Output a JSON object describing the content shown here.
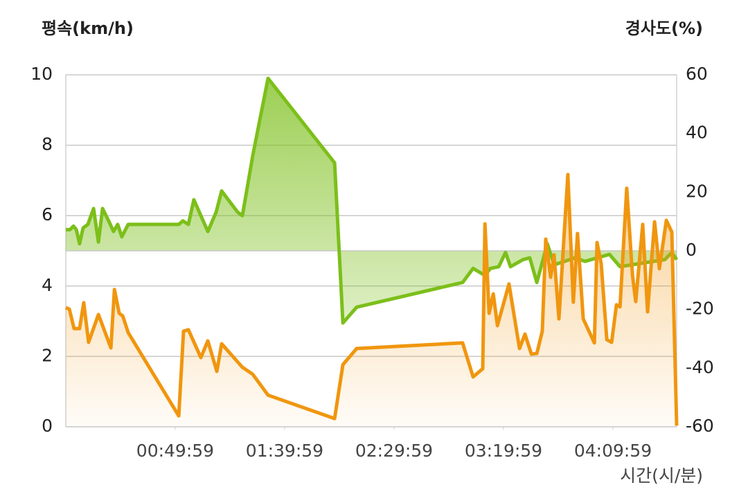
{
  "chart_data": {
    "type": "line",
    "ylabel": "평속(km/h)",
    "y2label": "경사도(%)",
    "xlabel": "시간(시/분)",
    "xlim": [
      0,
      279.1
    ],
    "xticks": [
      {
        "value": 49.98,
        "label": "00:49:59"
      },
      {
        "value": 99.98,
        "label": "01:39:59"
      },
      {
        "value": 149.98,
        "label": "02:29:59"
      },
      {
        "value": 199.98,
        "label": "03:19:59"
      },
      {
        "value": 249.98,
        "label": "04:09:59"
      }
    ],
    "ylim": [
      0,
      10
    ],
    "yticks": [
      0,
      2,
      4,
      6,
      8,
      10
    ],
    "y2lim": [
      -60,
      60
    ],
    "y2ticks": [
      -60,
      -40,
      -20,
      0,
      20,
      40,
      60
    ],
    "grid": true,
    "series": [
      {
        "name": "평속",
        "color": "#7cbf1a",
        "axis": "y",
        "x": [
          0,
          1.9,
          3.5,
          4.8,
          6.3,
          7.9,
          10.1,
          12.7,
          14.9,
          16.8,
          19.6,
          21.8,
          23.7,
          25.6,
          28.5,
          51.6,
          53.5,
          56,
          58.5,
          64.9,
          68.7,
          71.2,
          78.5,
          80.7,
          85.4,
          92.4,
          122.8,
          126.6,
          132.9,
          181.3,
          186.1,
          191.5,
          194,
          197.8,
          200.9,
          203.2,
          208.9,
          212,
          215.2,
          220,
          223.1,
          232.6,
          237.3,
          248.4,
          253.2,
          273.7,
          276.9,
          279.1
        ],
        "values": [
          5.6,
          5.6,
          5.7,
          5.6,
          5.2,
          5.65,
          5.75,
          6.2,
          5.25,
          6.2,
          5.85,
          5.55,
          5.75,
          5.4,
          5.75,
          5.75,
          5.85,
          5.75,
          6.45,
          5.55,
          6.1,
          6.7,
          6.1,
          6.0,
          7.7,
          9.9,
          7.5,
          2.95,
          3.4,
          4.1,
          4.5,
          4.3,
          4.5,
          4.55,
          4.95,
          4.55,
          4.75,
          4.8,
          4.1,
          5.2,
          4.6,
          4.8,
          4.7,
          4.9,
          4.55,
          4.75,
          4.95,
          4.75
        ]
      },
      {
        "name": "경사도",
        "color": "#f0960f",
        "axis": "y2",
        "x": [
          0,
          1.6,
          3.8,
          6.3,
          8.2,
          10.4,
          14.9,
          20.6,
          22.2,
          24.4,
          26,
          28.5,
          51.6,
          53.8,
          56,
          61.7,
          64.9,
          69,
          71.2,
          80.7,
          85.4,
          92.4,
          122.8,
          126.6,
          132.9,
          181.3,
          186.1,
          190.5,
          191.5,
          193.4,
          195.3,
          197.2,
          202.5,
          207.3,
          209.8,
          212.7,
          215.2,
          217.7,
          219.3,
          221.5,
          223.1,
          225.3,
          229.4,
          231.9,
          233.8,
          236.4,
          241.5,
          242.7,
          244.6,
          247.2,
          249.4,
          251.6,
          253.2,
          256.3,
          258.9,
          260.4,
          263.6,
          265.8,
          269,
          271.2,
          274.4,
          276.9,
          279.1
        ],
        "values": [
          -19.4,
          -19.9,
          -26.5,
          -26.5,
          -17.7,
          -31.2,
          -21.7,
          -33.1,
          -13.2,
          -21.3,
          -22.2,
          -27.9,
          -56.3,
          -27.4,
          -26.9,
          -36.4,
          -30.7,
          -41.1,
          -31.7,
          -39.7,
          -42.1,
          -49.2,
          -57.2,
          -38.8,
          -33.3,
          -31.4,
          -43,
          -40.2,
          9.2,
          -21.3,
          -14.7,
          -25.5,
          -11.3,
          -33.3,
          -28.4,
          -35.2,
          -35,
          -27.4,
          4,
          -9,
          -1.4,
          -23.2,
          26,
          -17.5,
          5.9,
          -23.2,
          -31.4,
          2.8,
          -4.3,
          -30.3,
          -31.2,
          -18.4,
          -19.1,
          21.3,
          -8.3,
          -17.3,
          9,
          -20.8,
          9.9,
          -6.1,
          10.4,
          6.4,
          -59.6
        ]
      }
    ]
  }
}
